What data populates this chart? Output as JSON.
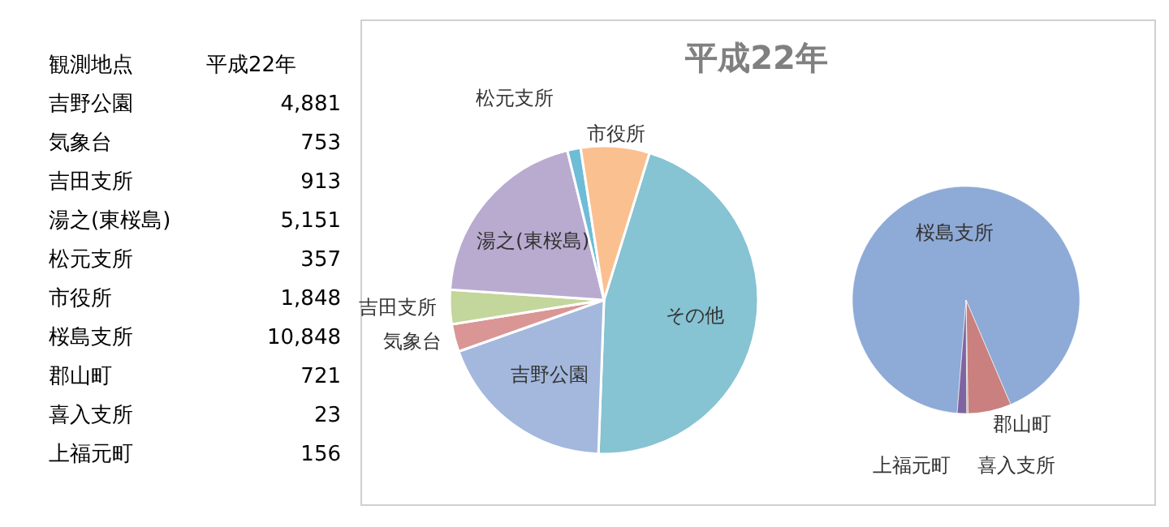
{
  "chart_data": [
    {
      "type": "other",
      "xlabel": "観測地点",
      "ylabel": "平成22年",
      "categories": [
        "吉野公園",
        "気象台",
        "吉田支所",
        "湯之(東桜島)",
        "松元支所",
        "市役所",
        "桜島支所",
        "郡山町",
        "喜入支所",
        "上福元町"
      ],
      "values": [
        4881,
        753,
        913,
        5151,
        357,
        1848,
        10848,
        721,
        23,
        156
      ],
      "value_labels": [
        "4,881",
        "753",
        "913",
        "5,151",
        "357",
        "1,848",
        "10,848",
        "721",
        "23",
        "156"
      ]
    },
    {
      "type": "pie",
      "title": "平成22年",
      "categories": [
        "その他",
        "吉野公園",
        "気象台",
        "吉田支所",
        "湯之(東桜島)",
        "松元支所",
        "市役所"
      ],
      "values": [
        45.8,
        19.0,
        2.9,
        3.6,
        20.1,
        1.4,
        7.2
      ],
      "colors": [
        "#86c3d3",
        "#a3b8dc",
        "#d99694",
        "#c3d69b",
        "#b9abd0",
        "#6fbcd6",
        "#fac090"
      ]
    },
    {
      "type": "pie",
      "categories": [
        "桜島支所",
        "郡山町",
        "喜入支所",
        "上福元町"
      ],
      "values": [
        92.34,
        6.14,
        0.19,
        1.33
      ],
      "colors": [
        "#8eaad6",
        "#c9807e",
        "#9bbb59",
        "#8064a2"
      ]
    }
  ]
}
